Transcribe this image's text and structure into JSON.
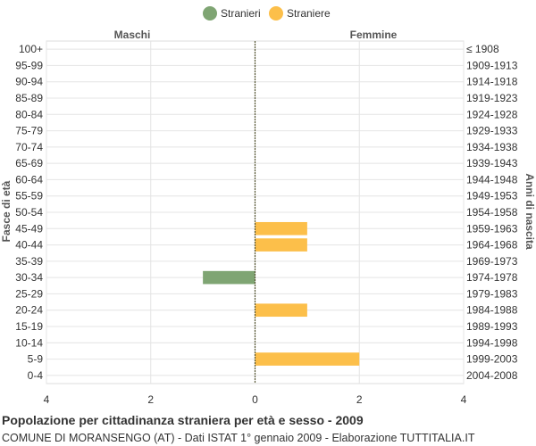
{
  "chart_data": {
    "type": "bar",
    "orientation": "horizontal-pyramid",
    "title": "Popolazione per cittadinanza straniera per età e sesso - 2009",
    "subtitle": "COMUNE DI MORANSENGO (AT) - Dati ISTAT 1° gennaio 2009 - Elaborazione TUTTITALIA.IT",
    "ylabel_left": "Fasce di età",
    "ylabel_right": "Anni di nascita",
    "side_labels": {
      "left": "Maschi",
      "right": "Femmine"
    },
    "categories": [
      "100+",
      "95-99",
      "90-94",
      "85-89",
      "80-84",
      "75-79",
      "70-74",
      "65-69",
      "60-64",
      "55-59",
      "50-54",
      "45-49",
      "40-44",
      "35-39",
      "30-34",
      "25-29",
      "20-24",
      "15-19",
      "10-14",
      "5-9",
      "0-4"
    ],
    "birth_years": [
      "≤ 1908",
      "1909-1913",
      "1914-1918",
      "1919-1923",
      "1924-1928",
      "1929-1933",
      "1934-1938",
      "1939-1943",
      "1944-1948",
      "1949-1953",
      "1954-1958",
      "1959-1963",
      "1964-1968",
      "1969-1973",
      "1974-1978",
      "1979-1983",
      "1984-1988",
      "1989-1993",
      "1994-1998",
      "1999-2003",
      "2004-2008"
    ],
    "series": [
      {
        "name": "Stranieri",
        "side": "left",
        "color": "#7fa573",
        "values": [
          0,
          0,
          0,
          0,
          0,
          0,
          0,
          0,
          0,
          0,
          0,
          0,
          0,
          0,
          1,
          0,
          0,
          0,
          0,
          0,
          0
        ]
      },
      {
        "name": "Straniere",
        "side": "right",
        "color": "#fcbf4a",
        "values": [
          0,
          0,
          0,
          0,
          0,
          0,
          0,
          0,
          0,
          0,
          0,
          1,
          1,
          0,
          0,
          0,
          1,
          0,
          0,
          2,
          0
        ]
      }
    ],
    "x_ticks": [
      {
        "value": -4,
        "label": "4"
      },
      {
        "value": -2,
        "label": "2"
      },
      {
        "value": 0,
        "label": "0"
      },
      {
        "value": 2,
        "label": "2"
      },
      {
        "value": 4,
        "label": "4"
      }
    ],
    "xlim": [
      -4,
      4
    ],
    "grid": true,
    "legend_position": "top-center"
  }
}
